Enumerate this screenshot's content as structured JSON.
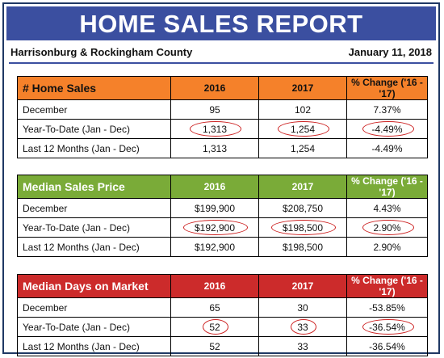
{
  "banner": {
    "title": "HOME SALES REPORT"
  },
  "subheader": {
    "location": "Harrisonburg & Rockingham County",
    "date": "January 11, 2018"
  },
  "columns": {
    "col2016": "2016",
    "col2017": "2017",
    "pct": "% Change ('16 - '17)"
  },
  "colors": {
    "banner": "#3b4fa0",
    "sales": "#f5812a",
    "price": "#7aab38",
    "dom": "#cc2b2b",
    "circle": "#cc1f1f"
  },
  "home_sales": {
    "title": "# Home Sales",
    "rows": [
      {
        "label": "December",
        "y2016": "95",
        "y2017": "102",
        "pct": "7.37%"
      },
      {
        "label": "Year-To-Date (Jan - Dec)",
        "y2016": "1,313",
        "y2017": "1,254",
        "pct": "-4.49%"
      },
      {
        "label": "Last 12 Months (Jan - Dec)",
        "y2016": "1,313",
        "y2017": "1,254",
        "pct": "-4.49%"
      }
    ]
  },
  "median_price": {
    "title": "Median Sales Price",
    "rows": [
      {
        "label": "December",
        "y2016": "$199,900",
        "y2017": "$208,750",
        "pct": "4.43%"
      },
      {
        "label": "Year-To-Date (Jan - Dec)",
        "y2016": "$192,900",
        "y2017": "$198,500",
        "pct": "2.90%"
      },
      {
        "label": "Last 12 Months (Jan - Dec)",
        "y2016": "$192,900",
        "y2017": "$198,500",
        "pct": "2.90%"
      }
    ]
  },
  "median_dom": {
    "title": "Median Days on Market",
    "rows": [
      {
        "label": "December",
        "y2016": "65",
        "y2017": "30",
        "pct": "-53.85%"
      },
      {
        "label": "Year-To-Date (Jan - Dec)",
        "y2016": "52",
        "y2017": "33",
        "pct": "-36.54%"
      },
      {
        "label": "Last 12 Months (Jan - Dec)",
        "y2016": "52",
        "y2017": "33",
        "pct": "-36.54%"
      }
    ]
  }
}
